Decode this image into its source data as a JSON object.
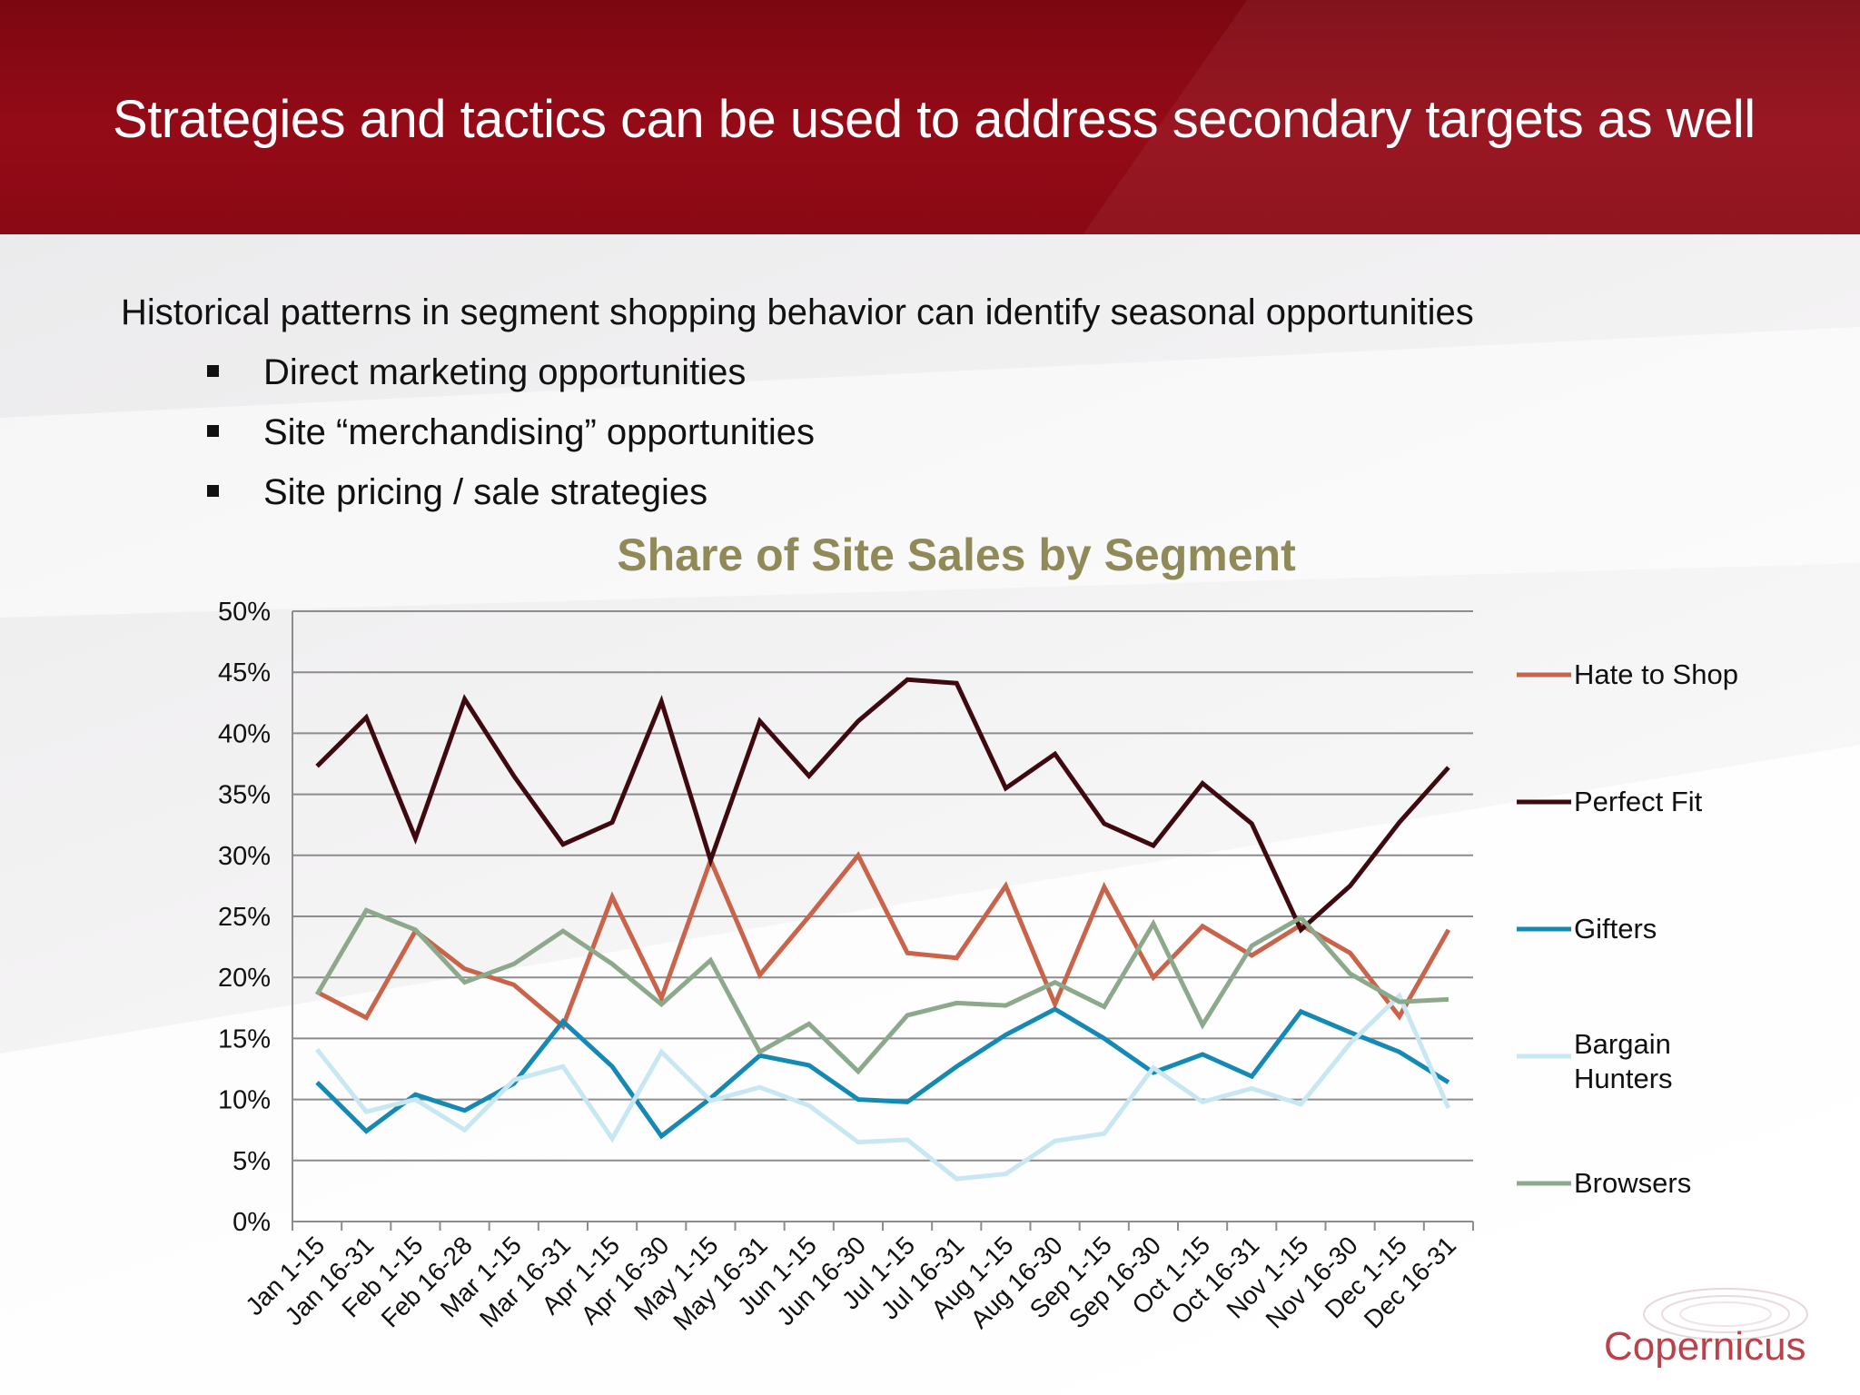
{
  "slide": {
    "title": "Strategies and tactics can be used to address secondary targets as well",
    "intro": "Historical patterns in segment shopping behavior can identify seasonal opportunities",
    "bullets": [
      "Direct marketing opportunities",
      "Site “merchandising” opportunities",
      "Site pricing / sale strategies"
    ],
    "logo": "Copernicus"
  },
  "chart_data": {
    "type": "line",
    "title": "Share of Site Sales by Segment",
    "xlabel": "",
    "ylabel": "",
    "ylim": [
      0,
      50
    ],
    "y_tick_labels": [
      "0%",
      "5%",
      "10%",
      "15%",
      "20%",
      "25%",
      "30%",
      "35%",
      "40%",
      "45%",
      "50%"
    ],
    "grid": true,
    "legend_position": "right",
    "categories": [
      "Jan 1-15",
      "Jan 16-31",
      "Feb 1-15",
      "Feb 16-28",
      "Mar 1-15",
      "Mar 16-31",
      "Apr 1-15",
      "Apr 16-30",
      "May 1-15",
      "May 16-31",
      "Jun 1-15",
      "Jun 16-30",
      "Jul 1-15",
      "Jul 16-31",
      "Aug 1-15",
      "Aug 16-30",
      "Sep 1-15",
      "Sep 16-30",
      "Oct 1-15",
      "Oct 16-31",
      "Nov 1-15",
      "Nov 16-30",
      "Dec 1-15",
      "Dec 16-31"
    ],
    "series": [
      {
        "name": "Hate to Shop",
        "color": "#c9634a",
        "values": [
          18.8,
          16.7,
          23.8,
          20.7,
          19.4,
          16.0,
          26.6,
          18.3,
          29.6,
          20.2,
          25.0,
          30.0,
          22.0,
          21.6,
          27.5,
          17.8,
          27.4,
          20.0,
          24.2,
          21.8,
          24.3,
          22.0,
          16.8,
          23.9
        ]
      },
      {
        "name": "Perfect Fit",
        "color": "#3e0a0f",
        "values": [
          37.3,
          41.3,
          31.4,
          42.8,
          36.5,
          30.9,
          32.7,
          42.6,
          29.6,
          41.0,
          36.5,
          41.0,
          44.4,
          44.1,
          35.5,
          38.3,
          32.6,
          30.8,
          35.9,
          32.6,
          23.9,
          27.5,
          32.7,
          37.2
        ]
      },
      {
        "name": "Gifters",
        "color": "#1489b4",
        "values": [
          11.4,
          7.4,
          10.4,
          9.1,
          11.3,
          16.4,
          12.7,
          7.0,
          10.1,
          13.6,
          12.8,
          10.0,
          9.8,
          12.7,
          15.3,
          17.4,
          15.0,
          12.2,
          13.7,
          11.9,
          17.2,
          15.5,
          13.9,
          11.4
        ]
      },
      {
        "name": "Bargain Hunters",
        "color": "#c7e7f3",
        "values": [
          14.1,
          9.0,
          10.0,
          7.5,
          11.6,
          12.7,
          6.8,
          13.9,
          9.9,
          11.0,
          9.5,
          6.5,
          6.7,
          3.5,
          3.9,
          6.6,
          7.2,
          12.6,
          9.8,
          10.9,
          9.6,
          14.6,
          18.5,
          9.3
        ]
      },
      {
        "name": "Browsers",
        "color": "#8da98b",
        "values": [
          18.6,
          25.5,
          23.9,
          19.6,
          21.1,
          23.8,
          21.1,
          17.8,
          21.4,
          13.9,
          16.2,
          12.3,
          16.9,
          17.9,
          17.7,
          19.6,
          17.6,
          24.4,
          16.1,
          22.6,
          24.9,
          20.3,
          18.0,
          18.2
        ]
      }
    ]
  }
}
